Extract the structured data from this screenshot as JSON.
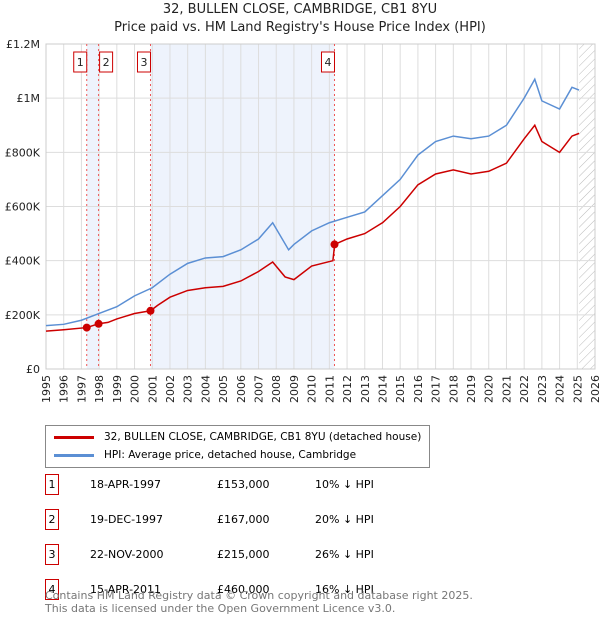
{
  "title": "32, BULLEN CLOSE, CAMBRIDGE, CB1 8YU",
  "subtitle": "Price paid vs. HM Land Registry's House Price Index (HPI)",
  "chart_data": {
    "type": "line",
    "xlim": [
      1995,
      2026
    ],
    "ylim": [
      0,
      1200000
    ],
    "x_ticks": [
      "1995",
      "1996",
      "1997",
      "1998",
      "1999",
      "2000",
      "2001",
      "2002",
      "2003",
      "2004",
      "2005",
      "2006",
      "2007",
      "2008",
      "2009",
      "2010",
      "2011",
      "2012",
      "2013",
      "2014",
      "2015",
      "2016",
      "2017",
      "2018",
      "2019",
      "2020",
      "2021",
      "2022",
      "2023",
      "2024",
      "2025",
      "2026"
    ],
    "y_ticks": [
      {
        "v": 0,
        "label": "£0"
      },
      {
        "v": 200000,
        "label": "£200K"
      },
      {
        "v": 400000,
        "label": "£400K"
      },
      {
        "v": 600000,
        "label": "£600K"
      },
      {
        "v": 800000,
        "label": "£800K"
      },
      {
        "v": 1000000,
        "label": "£1M"
      },
      {
        "v": 1200000,
        "label": "£1.2M"
      }
    ],
    "series": [
      {
        "name": "32, BULLEN CLOSE, CAMBRIDGE, CB1 8YU (detached house)",
        "color": "#cc0000",
        "x": [
          1995,
          1996,
          1997.3,
          1997.97,
          1998.5,
          1999,
          2000,
          2000.9,
          2001.3,
          2002,
          2003,
          2004,
          2005,
          2006,
          2007,
          2007.8,
          2008.5,
          2009,
          2010,
          2011.2,
          2011.3,
          2012,
          2013,
          2014,
          2015,
          2016,
          2017,
          2018,
          2019,
          2020,
          2021,
          2022,
          2022.6,
          2023,
          2024,
          2024.7,
          2025.1
        ],
        "y": [
          140000,
          145000,
          153000,
          167000,
          172000,
          185000,
          205000,
          215000,
          235000,
          265000,
          290000,
          300000,
          305000,
          325000,
          360000,
          395000,
          340000,
          330000,
          380000,
          400000,
          460000,
          480000,
          500000,
          540000,
          600000,
          680000,
          720000,
          735000,
          720000,
          730000,
          760000,
          850000,
          900000,
          840000,
          800000,
          860000,
          870000
        ]
      },
      {
        "name": "HPI: Average price, detached house, Cambridge",
        "color": "#5b8fd4",
        "x": [
          1995,
          1996,
          1997,
          1998,
          1999,
          2000,
          2001,
          2002,
          2003,
          2004,
          2005,
          2006,
          2007,
          2007.8,
          2008.7,
          2009,
          2010,
          2011,
          2012,
          2013,
          2014,
          2015,
          2016,
          2017,
          2018,
          2019,
          2020,
          2021,
          2022,
          2022.6,
          2023,
          2024,
          2024.7,
          2025.1
        ],
        "y": [
          160000,
          165000,
          180000,
          205000,
          230000,
          270000,
          300000,
          350000,
          390000,
          410000,
          415000,
          440000,
          480000,
          540000,
          440000,
          460000,
          510000,
          540000,
          560000,
          580000,
          640000,
          700000,
          790000,
          840000,
          860000,
          850000,
          860000,
          900000,
          1000000,
          1070000,
          990000,
          960000,
          1040000,
          1030000
        ]
      }
    ],
    "sales": [
      {
        "n": "1",
        "x": 1997.3,
        "price": 153000,
        "date": "18-APR-1997",
        "price_label": "£153,000",
        "hpi": "10% ↓ HPI"
      },
      {
        "n": "2",
        "x": 1997.97,
        "price": 167000,
        "date": "19-DEC-1997",
        "price_label": "£167,000",
        "hpi": "20% ↓ HPI"
      },
      {
        "n": "3",
        "x": 2000.9,
        "price": 215000,
        "date": "22-NOV-2000",
        "price_label": "£215,000",
        "hpi": "26% ↓ HPI"
      },
      {
        "n": "4",
        "x": 2011.29,
        "price": 460000,
        "date": "15-APR-2011",
        "price_label": "£460,000",
        "hpi": "16% ↓ HPI"
      }
    ],
    "forecast_start": 2025.1
  },
  "legend": {
    "red": "32, BULLEN CLOSE, CAMBRIDGE, CB1 8YU (detached house)",
    "blue": "HPI: Average price, detached house, Cambridge"
  },
  "footer": [
    "Contains HM Land Registry data © Crown copyright and database right 2025.",
    "This data is licensed under the Open Government Licence v3.0."
  ]
}
